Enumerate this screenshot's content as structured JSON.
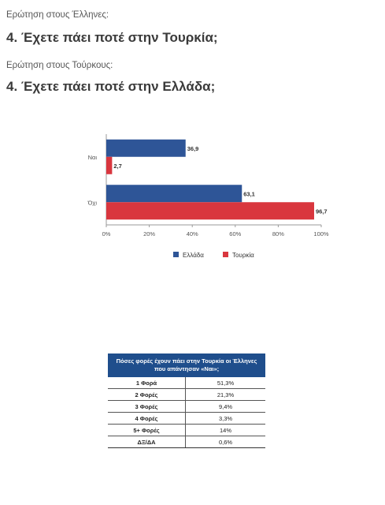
{
  "header": {
    "q1_label": "Ερώτηση στους Έλληνες:",
    "q1_title": "4. Έχετε πάει ποτέ στην Τουρκία;",
    "q2_label": "Ερώτηση στους Τούρκους:",
    "q2_title": "4. Έχετε πάει ποτέ στην Ελλάδα;"
  },
  "chart_data": {
    "type": "bar",
    "orientation": "horizontal",
    "categories": [
      "Ναι",
      "Όχι"
    ],
    "series": [
      {
        "name": "Ελλάδα",
        "values": [
          36.9,
          63.1
        ],
        "color": "#2e5597"
      },
      {
        "name": "Τουρκία",
        "values": [
          2.7,
          96.7
        ],
        "color": "#d9363e"
      }
    ],
    "data_labels": [
      [
        "36,9",
        "63,1"
      ],
      [
        "2,7",
        "96,7"
      ]
    ],
    "xlim": [
      0,
      100
    ],
    "x_ticks": [
      "0%",
      "20%",
      "40%",
      "60%",
      "80%",
      "100%"
    ],
    "legend_position": "bottom",
    "grid": false
  },
  "table": {
    "header": "Πόσες φορές έχουν πάει στην Τουρκία οι Έλληνες που απάντησαν «Ναι»;",
    "rows": [
      {
        "label": "1 Φορά",
        "value": "51,3%"
      },
      {
        "label": "2 Φορές",
        "value": "21,3%"
      },
      {
        "label": "3 Φορές",
        "value": "9,4%"
      },
      {
        "label": "4 Φορές",
        "value": "3,3%"
      },
      {
        "label": "5+ Φορές",
        "value": "14%"
      },
      {
        "label": "ΔΞ/ΔΑ",
        "value": "0,6%"
      }
    ]
  }
}
